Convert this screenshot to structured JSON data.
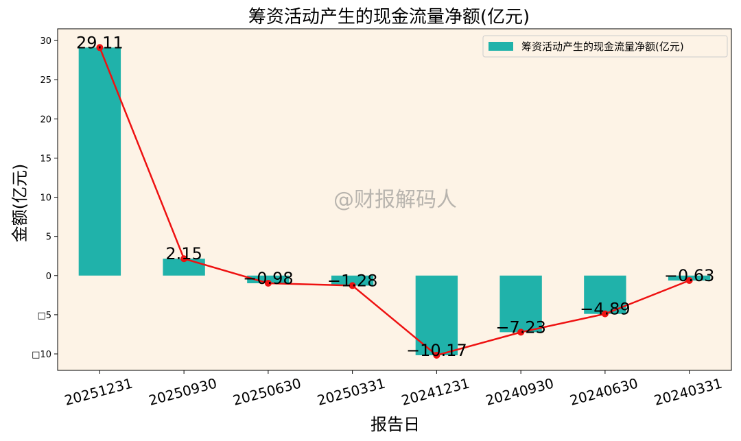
{
  "chart_data": {
    "type": "bar",
    "title": "筹资活动产生的现金流量净额(亿元)",
    "xlabel": "报告日",
    "ylabel": "金额(亿元)",
    "categories": [
      "20251231",
      "20250930",
      "20250630",
      "20250331",
      "20241231",
      "20240930",
      "20240630",
      "20240331"
    ],
    "series": [
      {
        "name": "筹资活动产生的现金流量净额(亿元)",
        "values": [
          29.11,
          2.15,
          -0.98,
          -1.28,
          -10.17,
          -7.23,
          -4.89,
          -0.63
        ]
      }
    ],
    "data_labels": [
      "29.11",
      "2.15",
      "−0.98",
      "−1.28",
      "−10.17",
      "−7.23",
      "−4.89",
      "−0.63"
    ],
    "y_ticks": [
      30,
      25,
      20,
      15,
      10,
      5,
      0,
      -5,
      -10
    ],
    "y_tick_labels": [
      "30",
      "25",
      "20",
      "15",
      "10",
      "5",
      "0",
      "□5",
      "□10"
    ],
    "ylim": [
      -12.1,
      31.5
    ],
    "legend_position": "top-right",
    "grid": false,
    "watermark": "@财报解码人",
    "colors": {
      "bar": "#20b2aa",
      "line": "#ee1111",
      "plot_background": "#fdf3e6",
      "figure_background": "#ffffff"
    }
  }
}
